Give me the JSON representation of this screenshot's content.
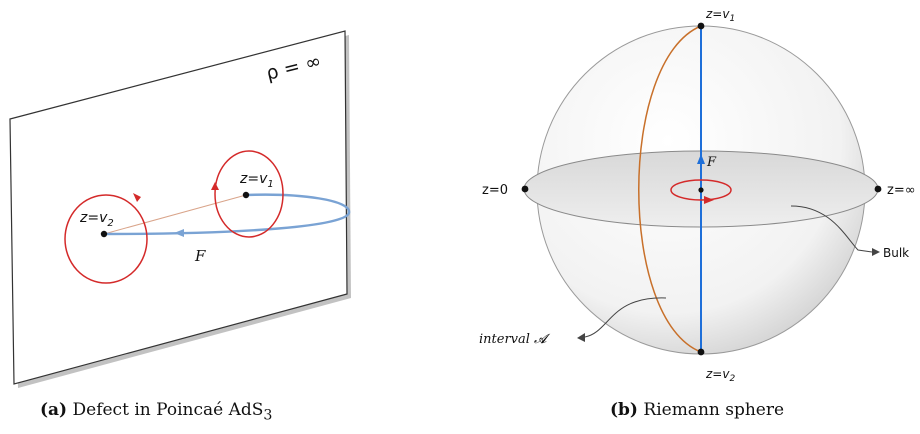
{
  "panel_a": {
    "rho_label": "ρ = ∞",
    "point_v1_label": "z=v",
    "point_v1_sub": "1",
    "point_v2_label": "z=v",
    "point_v2_sub": "2",
    "f_label": "F",
    "caption_tag": "(a)",
    "caption_text": "Defect in Poincaé AdS",
    "caption_sub": "3"
  },
  "panel_b": {
    "top_label": "z=v",
    "top_sub": "1",
    "bottom_label": "z=v",
    "bottom_sub": "2",
    "left_label": "z=0",
    "right_label": "z=∞",
    "f_label": "F",
    "bulk_label": "Bulk",
    "interval_label": "interval 𝓐",
    "caption_tag": "(b)",
    "caption_text": "Riemann sphere"
  },
  "colors": {
    "red": "#d42a2a",
    "blue_curve": "#7aa3d4",
    "blue_line": "#1e6fd9",
    "orange": "#c8702a"
  }
}
